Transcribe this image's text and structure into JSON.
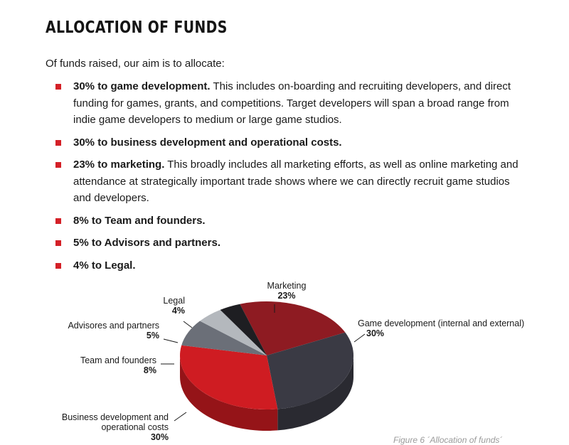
{
  "heading": "ALLOCATION OF FUNDS",
  "intro": "Of funds raised, our aim is to allocate:",
  "items": [
    {
      "bold": "30% to game development.",
      "text": " This includes on-boarding and recruiting developers, and direct funding for games, grants, and competitions. Target developers will span a broad range from indie game developers to medium or large game studios."
    },
    {
      "bold": "30% to business development and operational costs.",
      "text": ""
    },
    {
      "bold": "23% to marketing.",
      "text": " This broadly includes all marketing efforts, as well as online marketing and attendance at strategically important trade shows where we can directly recruit game studios and developers."
    },
    {
      "bold": "8% to Team and founders.",
      "text": ""
    },
    {
      "bold": "5% to Advisors and partners.",
      "text": ""
    },
    {
      "bold": "4% to Legal.",
      "text": ""
    }
  ],
  "chart_data": {
    "type": "pie",
    "title": "",
    "series": [
      {
        "label": "Marketing",
        "value_label": "23%",
        "value": 23,
        "color": "#8e1b22"
      },
      {
        "label": "Game development (internal and external)",
        "value_label": "30%",
        "value": 30,
        "color": "#3a3a44"
      },
      {
        "label": "Business development and operational costs",
        "value_label": "30%",
        "value": 30,
        "color": "#cf1c22"
      },
      {
        "label": "Team and founders",
        "value_label": "8%",
        "value": 8,
        "color": "#6b6f78"
      },
      {
        "label": "Advisores and partners",
        "value_label": "5%",
        "value": 5,
        "color": "#b4b8bd"
      },
      {
        "label": "Legal",
        "value_label": "4%",
        "value": 4,
        "color": "#1e1e22"
      }
    ]
  },
  "caption": "Figure 6 ´Allocation of funds´"
}
